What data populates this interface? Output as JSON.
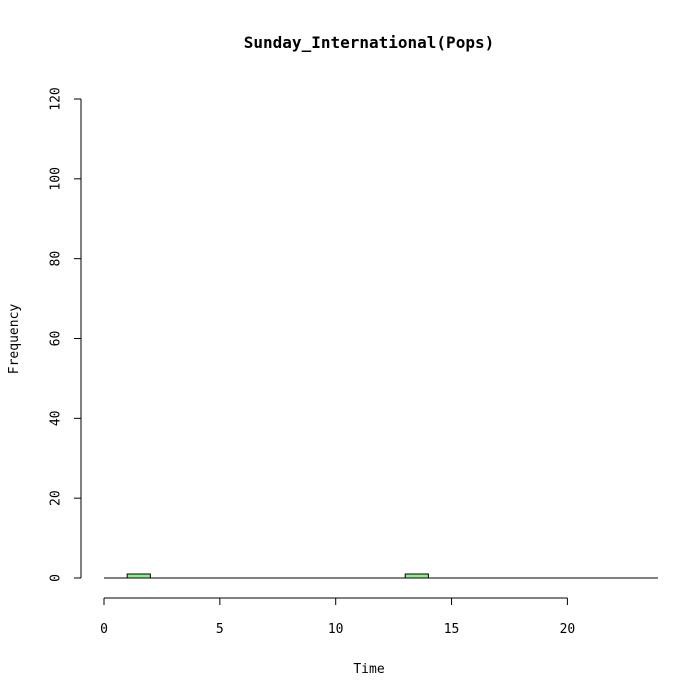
{
  "chart_data": {
    "type": "bar",
    "title": "Sunday_International(Pops)",
    "xlabel": "Time",
    "ylabel": "Frequency",
    "xlim": [
      0,
      24
    ],
    "ylim": [
      0,
      120
    ],
    "x_ticks": [
      "0",
      "5",
      "10",
      "15",
      "20"
    ],
    "x_tick_values": [
      0,
      5,
      10,
      15,
      20
    ],
    "y_ticks": [
      "0",
      "20",
      "40",
      "60",
      "80",
      "100",
      "120"
    ],
    "y_tick_values": [
      0,
      20,
      40,
      60,
      80,
      100,
      120
    ],
    "grid": false,
    "bar_color": "#90ee90",
    "bars": [
      {
        "x_start": 1,
        "x_end": 2,
        "value": 1
      },
      {
        "x_start": 13,
        "x_end": 14,
        "value": 1
      }
    ]
  }
}
